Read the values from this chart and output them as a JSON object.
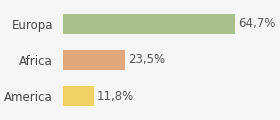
{
  "categories": [
    "America",
    "Africa",
    "Europa"
  ],
  "values": [
    11.8,
    23.5,
    64.7
  ],
  "labels": [
    "11,8%",
    "23,5%",
    "64,7%"
  ],
  "bar_colors": [
    "#f0d060",
    "#e0a87a",
    "#a8c08a"
  ],
  "background_color": "#f5f5f5",
  "xlim": [
    0,
    80
  ],
  "bar_height": 0.55,
  "label_fontsize": 8.5,
  "tick_fontsize": 8.5
}
